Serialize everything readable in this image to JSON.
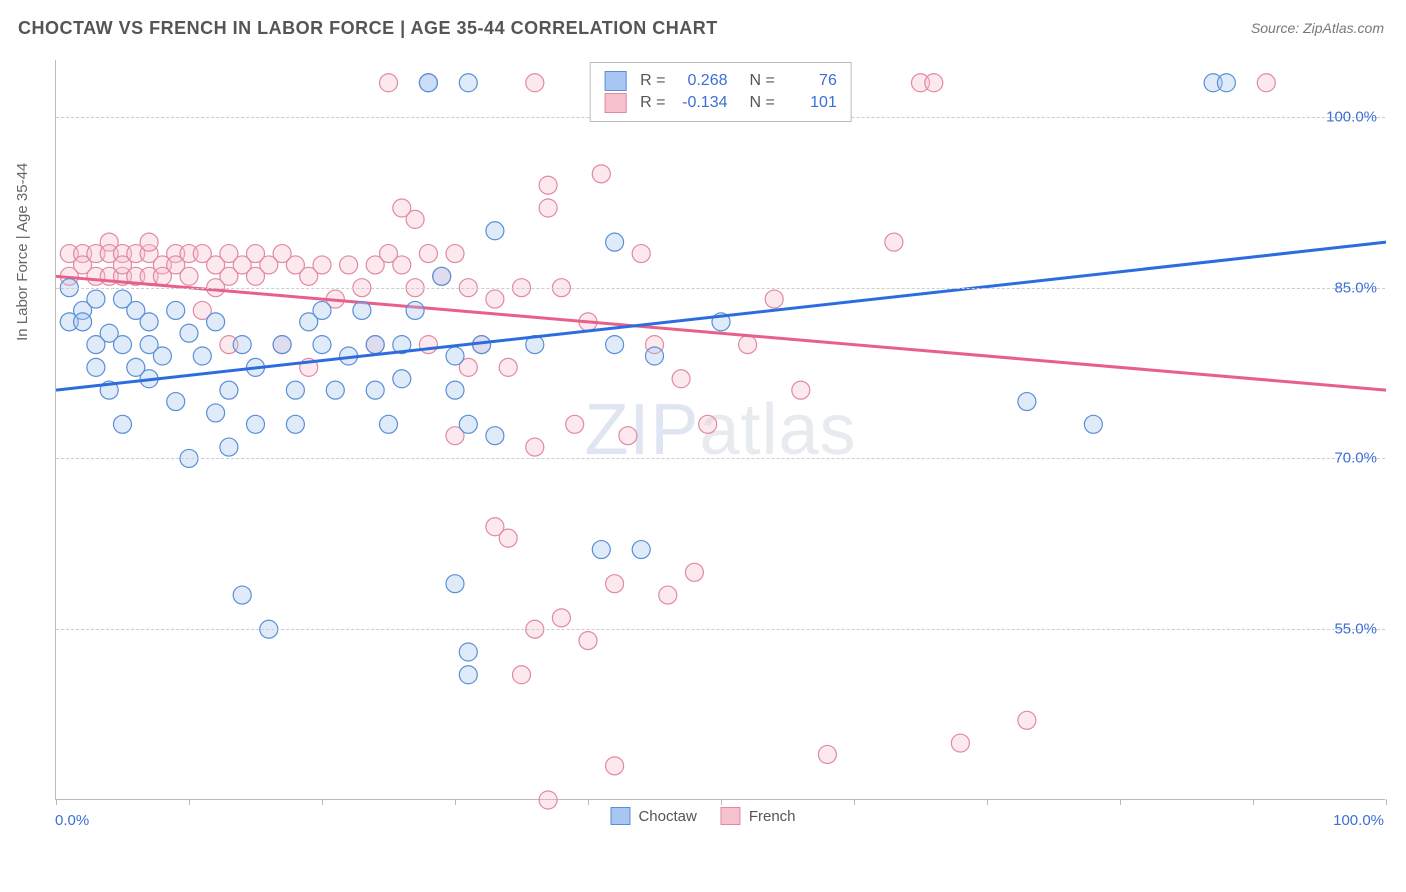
{
  "title": "CHOCTAW VS FRENCH IN LABOR FORCE | AGE 35-44 CORRELATION CHART",
  "source": "Source: ZipAtlas.com",
  "y_axis_title": "In Labor Force | Age 35-44",
  "watermark_bold": "ZIP",
  "watermark_thin": "atlas",
  "x_label_min": "0.0%",
  "x_label_max": "100.0%",
  "chart": {
    "type": "scatter",
    "xlim": [
      0,
      100
    ],
    "ylim": [
      40,
      105
    ],
    "y_ticks": [
      55,
      70,
      85,
      100
    ],
    "y_tick_labels": [
      "55.0%",
      "70.0%",
      "85.0%",
      "100.0%"
    ],
    "x_tick_positions": [
      0,
      10,
      20,
      30,
      40,
      50,
      60,
      70,
      80,
      90,
      100
    ],
    "background_color": "#ffffff",
    "grid_color": "#cccccc",
    "marker_radius": 9,
    "series": {
      "choctaw": {
        "label": "Choctaw",
        "fill": "#a7c7f2",
        "stroke": "#5a8fd6",
        "R": "0.268",
        "N": "76",
        "trend": {
          "x1": 0,
          "y1": 76,
          "x2": 100,
          "y2": 89,
          "color": "#2d6cdf",
          "width": 3
        },
        "points": [
          [
            1,
            85
          ],
          [
            1,
            82
          ],
          [
            2,
            83
          ],
          [
            2,
            82
          ],
          [
            3,
            84
          ],
          [
            3,
            80
          ],
          [
            3,
            78
          ],
          [
            4,
            81
          ],
          [
            4,
            76
          ],
          [
            5,
            84
          ],
          [
            5,
            80
          ],
          [
            5,
            73
          ],
          [
            6,
            83
          ],
          [
            6,
            78
          ],
          [
            7,
            82
          ],
          [
            7,
            80
          ],
          [
            7,
            77
          ],
          [
            8,
            79
          ],
          [
            9,
            83
          ],
          [
            9,
            75
          ],
          [
            10,
            81
          ],
          [
            10,
            70
          ],
          [
            11,
            79
          ],
          [
            12,
            82
          ],
          [
            12,
            74
          ],
          [
            13,
            76
          ],
          [
            13,
            71
          ],
          [
            14,
            58
          ],
          [
            14,
            80
          ],
          [
            15,
            78
          ],
          [
            15,
            73
          ],
          [
            16,
            55
          ],
          [
            17,
            80
          ],
          [
            18,
            76
          ],
          [
            18,
            73
          ],
          [
            19,
            82
          ],
          [
            20,
            80
          ],
          [
            20,
            83
          ],
          [
            21,
            76
          ],
          [
            22,
            79
          ],
          [
            23,
            83
          ],
          [
            24,
            80
          ],
          [
            24,
            76
          ],
          [
            25,
            73
          ],
          [
            26,
            80
          ],
          [
            26,
            77
          ],
          [
            27,
            83
          ],
          [
            28,
            103
          ],
          [
            28,
            103
          ],
          [
            29,
            86
          ],
          [
            30,
            79
          ],
          [
            31,
            103
          ],
          [
            30,
            76
          ],
          [
            31,
            73
          ],
          [
            32,
            80
          ],
          [
            30,
            59
          ],
          [
            31,
            53
          ],
          [
            31,
            51
          ],
          [
            33,
            72
          ],
          [
            33,
            90
          ],
          [
            36,
            80
          ],
          [
            41,
            62
          ],
          [
            42,
            80
          ],
          [
            42,
            89
          ],
          [
            44,
            62
          ],
          [
            45,
            79
          ],
          [
            50,
            82
          ],
          [
            73,
            75
          ],
          [
            78,
            73
          ],
          [
            87,
            103
          ],
          [
            88,
            103
          ]
        ]
      },
      "french": {
        "label": "French",
        "fill": "#f6c0cd",
        "stroke": "#e189a3",
        "R": "-0.134",
        "N": "101",
        "trend": {
          "x1": 0,
          "y1": 86,
          "x2": 100,
          "y2": 76,
          "color": "#e85f8a",
          "width": 3
        },
        "points": [
          [
            1,
            88
          ],
          [
            1,
            86
          ],
          [
            2,
            88
          ],
          [
            2,
            87
          ],
          [
            3,
            88
          ],
          [
            3,
            86
          ],
          [
            4,
            89
          ],
          [
            4,
            88
          ],
          [
            4,
            86
          ],
          [
            5,
            88
          ],
          [
            5,
            86
          ],
          [
            5,
            87
          ],
          [
            6,
            88
          ],
          [
            6,
            86
          ],
          [
            7,
            88
          ],
          [
            7,
            89
          ],
          [
            7,
            86
          ],
          [
            8,
            87
          ],
          [
            8,
            86
          ],
          [
            9,
            88
          ],
          [
            9,
            87
          ],
          [
            10,
            88
          ],
          [
            10,
            86
          ],
          [
            11,
            88
          ],
          [
            11,
            83
          ],
          [
            12,
            87
          ],
          [
            12,
            85
          ],
          [
            13,
            88
          ],
          [
            13,
            86
          ],
          [
            13,
            80
          ],
          [
            14,
            87
          ],
          [
            15,
            88
          ],
          [
            15,
            86
          ],
          [
            16,
            87
          ],
          [
            17,
            88
          ],
          [
            17,
            80
          ],
          [
            18,
            87
          ],
          [
            19,
            86
          ],
          [
            19,
            78
          ],
          [
            20,
            87
          ],
          [
            21,
            84
          ],
          [
            22,
            87
          ],
          [
            23,
            85
          ],
          [
            24,
            87
          ],
          [
            24,
            80
          ],
          [
            25,
            88
          ],
          [
            25,
            103
          ],
          [
            26,
            92
          ],
          [
            26,
            87
          ],
          [
            27,
            91
          ],
          [
            27,
            85
          ],
          [
            28,
            88
          ],
          [
            28,
            80
          ],
          [
            29,
            86
          ],
          [
            30,
            88
          ],
          [
            30,
            72
          ],
          [
            31,
            85
          ],
          [
            31,
            78
          ],
          [
            32,
            80
          ],
          [
            33,
            84
          ],
          [
            33,
            64
          ],
          [
            34,
            78
          ],
          [
            34,
            63
          ],
          [
            35,
            85
          ],
          [
            35,
            51
          ],
          [
            36,
            71
          ],
          [
            36,
            55
          ],
          [
            36,
            103
          ],
          [
            37,
            40
          ],
          [
            37,
            92
          ],
          [
            37,
            94
          ],
          [
            38,
            85
          ],
          [
            38,
            56
          ],
          [
            39,
            73
          ],
          [
            40,
            82
          ],
          [
            40,
            54
          ],
          [
            41,
            95
          ],
          [
            41,
            103
          ],
          [
            42,
            59
          ],
          [
            42,
            43
          ],
          [
            43,
            72
          ],
          [
            44,
            88
          ],
          [
            45,
            80
          ],
          [
            46,
            58
          ],
          [
            47,
            77
          ],
          [
            48,
            60
          ],
          [
            49,
            73
          ],
          [
            52,
            80
          ],
          [
            54,
            84
          ],
          [
            56,
            76
          ],
          [
            58,
            44
          ],
          [
            63,
            89
          ],
          [
            65,
            103
          ],
          [
            66,
            103
          ],
          [
            68,
            45
          ],
          [
            73,
            47
          ],
          [
            91,
            103
          ]
        ]
      }
    }
  },
  "legend": {
    "items": [
      {
        "label": "Choctaw",
        "fill": "#a7c7f2",
        "stroke": "#5a8fd6"
      },
      {
        "label": "French",
        "fill": "#f6c0cd",
        "stroke": "#e189a3"
      }
    ]
  }
}
